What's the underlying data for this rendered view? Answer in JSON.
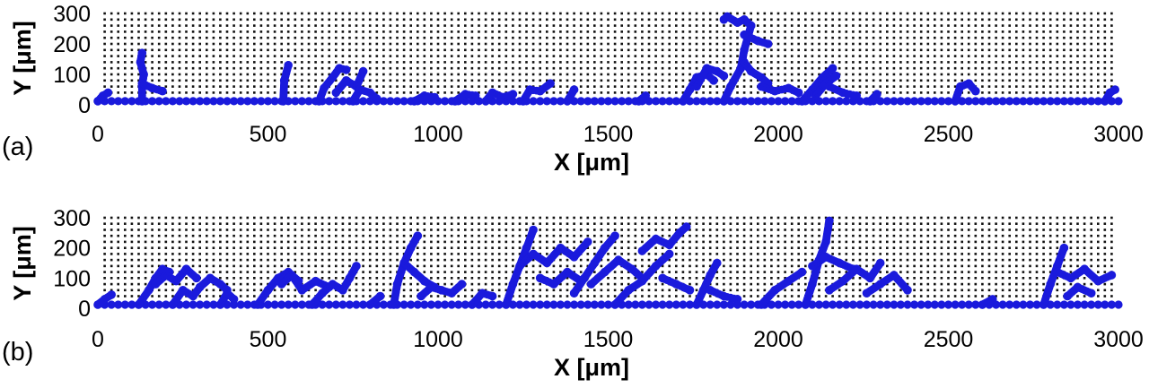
{
  "figure": {
    "colors": {
      "grid_dots": "#111111",
      "cluster": "#1a1adc",
      "background": "#ffffff"
    }
  },
  "chart_data": [
    {
      "panel_label": "(a)",
      "type": "scatter",
      "title": "",
      "xlabel": "X [μm]",
      "ylabel": "Y [μm]",
      "xlim": [
        0,
        3000
      ],
      "ylim": [
        0,
        300
      ],
      "xticks": [
        "0",
        "500",
        "1000",
        "1500",
        "2000",
        "2500",
        "3000"
      ],
      "yticks": [
        "0",
        "100",
        "200",
        "300"
      ],
      "grid": true,
      "substrate_y": 12,
      "series": [
        {
          "color": "#1a1adc",
          "branches": [
            {
              "x": [
                130,
                130,
                135,
                125,
                130
              ],
              "y": [
                12,
                60,
                100,
                140,
                170
              ]
            },
            {
              "x": [
                130,
                160,
                190
              ],
              "y": [
                70,
                55,
                45
              ]
            },
            {
              "x": [
                545,
                548,
                560
              ],
              "y": [
                12,
                80,
                130
              ]
            },
            {
              "x": [
                650,
                665,
                690,
                710,
                730
              ],
              "y": [
                12,
                55,
                90,
                120,
                115
              ]
            },
            {
              "x": [
                700,
                730,
                760,
                780
              ],
              "y": [
                40,
                80,
                60,
                110
              ]
            },
            {
              "x": [
                750,
                770,
                800,
                820
              ],
              "y": [
                12,
                50,
                40,
                20
              ]
            },
            {
              "x": [
                930,
                960,
                990
              ],
              "y": [
                12,
                30,
                25
              ]
            },
            {
              "x": [
                1050,
                1080,
                1110
              ],
              "y": [
                12,
                35,
                30
              ]
            },
            {
              "x": [
                1140,
                1160,
                1190,
                1220
              ],
              "y": [
                12,
                40,
                25,
                35
              ]
            },
            {
              "x": [
                1250,
                1270,
                1300,
                1330
              ],
              "y": [
                12,
                50,
                45,
                70
              ]
            },
            {
              "x": [
                1380,
                1400
              ],
              "y": [
                12,
                50
              ]
            },
            {
              "x": [
                1590,
                1610
              ],
              "y": [
                12,
                30
              ]
            },
            {
              "x": [
                1720,
                1740,
                1760,
                1790,
                1810
              ],
              "y": [
                12,
                50,
                90,
                100,
                80
              ]
            },
            {
              "x": [
                1760,
                1790,
                1820,
                1840
              ],
              "y": [
                60,
                120,
                110,
                95
              ]
            },
            {
              "x": [
                1840,
                1860,
                1890,
                1900,
                1920
              ],
              "y": [
                12,
                60,
                120,
                180,
                260
              ]
            },
            {
              "x": [
                1920,
                1900,
                1880,
                1850,
                1840
              ],
              "y": [
                260,
                280,
                270,
                290,
                280
              ]
            },
            {
              "x": [
                1900,
                1940,
                1970
              ],
              "y": [
                230,
                210,
                200
              ]
            },
            {
              "x": [
                1900,
                1920,
                1950,
                1970
              ],
              "y": [
                140,
                110,
                90,
                70
              ]
            },
            {
              "x": [
                1950,
                1990,
                2030,
                2060
              ],
              "y": [
                60,
                45,
                55,
                40
              ]
            },
            {
              "x": [
                2070,
                2100,
                2130,
                2160
              ],
              "y": [
                12,
                50,
                90,
                120
              ]
            },
            {
              "x": [
                2110,
                2140,
                2170
              ],
              "y": [
                30,
                70,
                95
              ]
            },
            {
              "x": [
                2150,
                2190,
                2230
              ],
              "y": [
                60,
                40,
                30
              ]
            },
            {
              "x": [
                2270,
                2290
              ],
              "y": [
                12,
                35
              ]
            },
            {
              "x": [
                2520,
                2535,
                2560,
                2580
              ],
              "y": [
                12,
                60,
                70,
                45
              ]
            },
            {
              "x": [
                2960,
                2975,
                2990
              ],
              "y": [
                12,
                40,
                50
              ]
            },
            {
              "x": [
                0,
                15,
                30
              ],
              "y": [
                12,
                30,
                40
              ]
            }
          ]
        }
      ]
    },
    {
      "panel_label": "(b)",
      "type": "scatter",
      "title": "",
      "xlabel": "X [μm]",
      "ylabel": "Y [μm]",
      "xlim": [
        0,
        3000
      ],
      "ylim": [
        0,
        300
      ],
      "xticks": [
        "0",
        "500",
        "1000",
        "1500",
        "2000",
        "2500",
        "3000"
      ],
      "yticks": [
        "0",
        "100",
        "200",
        "300"
      ],
      "grid": true,
      "substrate_y": 12,
      "series": [
        {
          "color": "#1a1adc",
          "branches": [
            {
              "x": [
                120,
                150,
                170,
                190,
                210
              ],
              "y": [
                12,
                60,
                100,
                130,
                120
              ]
            },
            {
              "x": [
                170,
                200,
                230,
                260,
                290
              ],
              "y": [
                80,
                110,
                90,
                130,
                100
              ]
            },
            {
              "x": [
                220,
                250,
                280,
                300
              ],
              "y": [
                12,
                60,
                40,
                70
              ]
            },
            {
              "x": [
                300,
                330,
                360,
                380
              ],
              "y": [
                70,
                100,
                80,
                60
              ]
            },
            {
              "x": [
                360,
                380,
                400
              ],
              "y": [
                12,
                50,
                30
              ]
            },
            {
              "x": [
                470,
                500,
                530,
                560,
                590
              ],
              "y": [
                12,
                60,
                100,
                120,
                90
              ]
            },
            {
              "x": [
                540,
                570,
                600,
                640,
                680
              ],
              "y": [
                80,
                110,
                60,
                90,
                70
              ]
            },
            {
              "x": [
                630,
                660,
                690,
                720,
                740,
                760
              ],
              "y": [
                12,
                50,
                80,
                60,
                100,
                140
              ]
            },
            {
              "x": [
                800,
                830
              ],
              "y": [
                12,
                40
              ]
            },
            {
              "x": [
                870,
                880,
                900,
                920,
                940
              ],
              "y": [
                12,
                80,
                150,
                200,
                240
              ]
            },
            {
              "x": [
                900,
                930,
                960,
                990
              ],
              "y": [
                150,
                120,
                90,
                70
              ]
            },
            {
              "x": [
                950,
                980,
                1010,
                1040,
                1070
              ],
              "y": [
                40,
                70,
                60,
                50,
                80
              ]
            },
            {
              "x": [
                1100,
                1130,
                1160
              ],
              "y": [
                12,
                50,
                40
              ]
            },
            {
              "x": [
                1200,
                1220,
                1240,
                1260,
                1280
              ],
              "y": [
                12,
                80,
                140,
                200,
                260
              ]
            },
            {
              "x": [
                1240,
                1280,
                1320,
                1360,
                1400,
                1440
              ],
              "y": [
                140,
                180,
                150,
                200,
                170,
                220
              ]
            },
            {
              "x": [
                1300,
                1340,
                1380,
                1420
              ],
              "y": [
                100,
                80,
                120,
                90
              ]
            },
            {
              "x": [
                1400,
                1430,
                1460,
                1490,
                1520
              ],
              "y": [
                50,
                100,
                150,
                200,
                240
              ]
            },
            {
              "x": [
                1450,
                1490,
                1530,
                1570,
                1600
              ],
              "y": [
                80,
                120,
                160,
                130,
                100
              ]
            },
            {
              "x": [
                1520,
                1560,
                1600,
                1640,
                1680
              ],
              "y": [
                12,
                60,
                90,
                140,
                180
              ]
            },
            {
              "x": [
                1600,
                1640,
                1680,
                1710,
                1730
              ],
              "y": [
                190,
                230,
                210,
                250,
                270
              ]
            },
            {
              "x": [
                1660,
                1700,
                1740
              ],
              "y": [
                100,
                80,
                60
              ]
            },
            {
              "x": [
                1760,
                1780,
                1800,
                1820
              ],
              "y": [
                12,
                60,
                110,
                150
              ]
            },
            {
              "x": [
                1800,
                1840,
                1880
              ],
              "y": [
                60,
                40,
                30
              ]
            },
            {
              "x": [
                1950,
                1990,
                2030,
                2070
              ],
              "y": [
                12,
                60,
                90,
                120
              ]
            },
            {
              "x": [
                2080,
                2100,
                2120,
                2140,
                2150
              ],
              "y": [
                12,
                80,
                160,
                220,
                290
              ]
            },
            {
              "x": [
                2100,
                2140,
                2180,
                2220
              ],
              "y": [
                140,
                170,
                150,
                130
              ]
            },
            {
              "x": [
                2150,
                2190,
                2230,
                2270,
                2300
              ],
              "y": [
                60,
                90,
                130,
                100,
                150
              ]
            },
            {
              "x": [
                2260,
                2300,
                2340,
                2380
              ],
              "y": [
                50,
                80,
                110,
                60
              ]
            },
            {
              "x": [
                2600,
                2630
              ],
              "y": [
                12,
                30
              ]
            },
            {
              "x": [
                2780,
                2800,
                2820,
                2840
              ],
              "y": [
                12,
                80,
                140,
                200
              ]
            },
            {
              "x": [
                2820,
                2860,
                2900,
                2940,
                2980
              ],
              "y": [
                120,
                100,
                130,
                90,
                110
              ]
            },
            {
              "x": [
                2850,
                2880,
                2920
              ],
              "y": [
                40,
                70,
                50
              ]
            },
            {
              "x": [
                0,
                20,
                40
              ],
              "y": [
                12,
                30,
                45
              ]
            }
          ]
        }
      ]
    }
  ]
}
